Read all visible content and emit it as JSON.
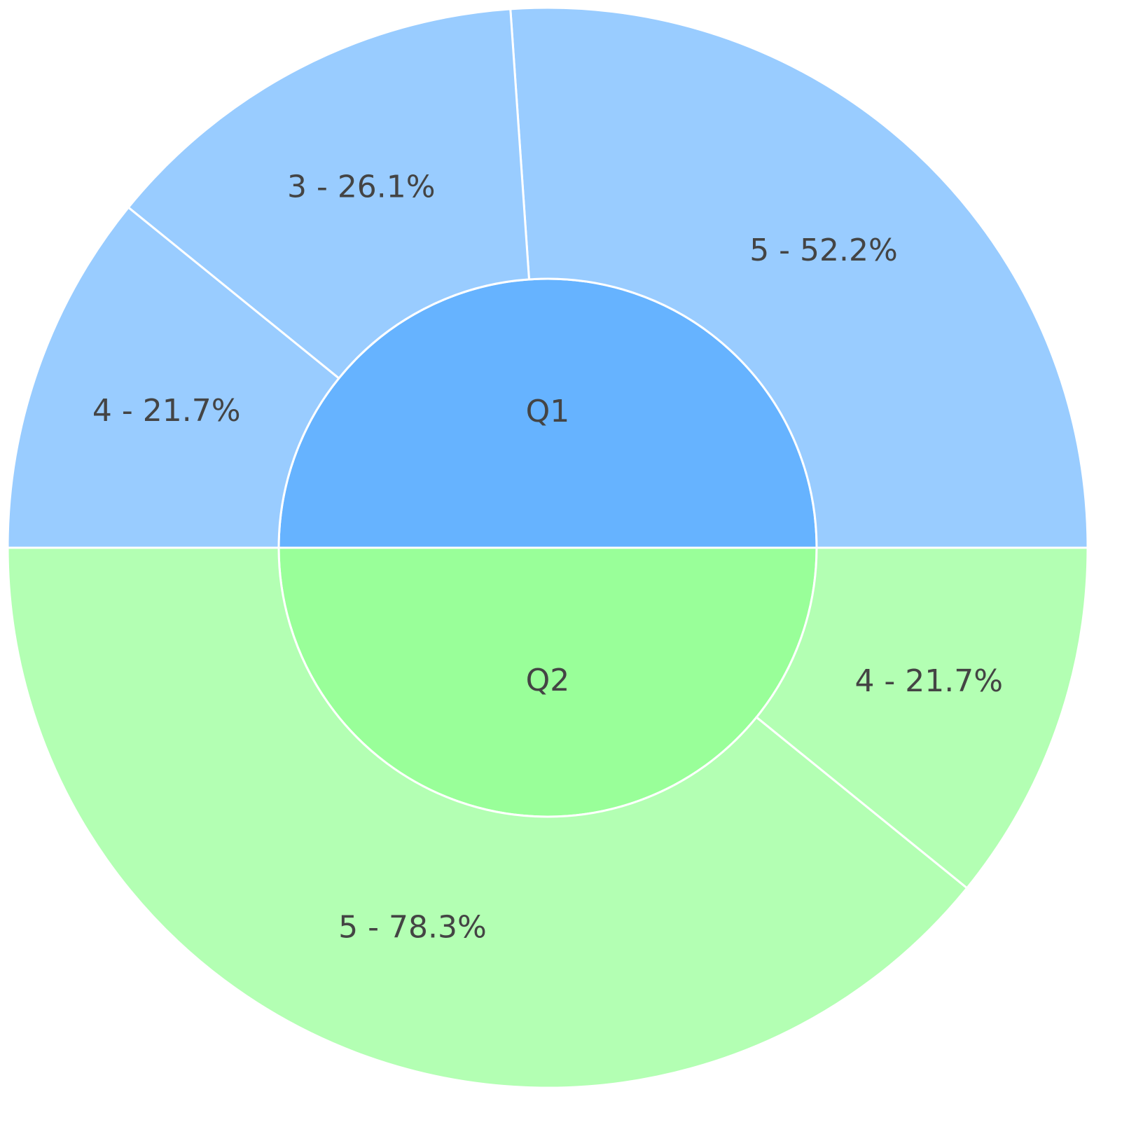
{
  "chart_data": {
    "type": "sunburst",
    "series": [
      {
        "name": "Q1",
        "color": "#66b3ff",
        "value": 50,
        "children": {
          "values": [
            52.2,
            26.1,
            21.7
          ],
          "value_labels": [
            "5 - 52.2%",
            "3 - 26.1%",
            "4 - 21.7%"
          ],
          "color": "#99ccff"
        }
      },
      {
        "name": "Q2",
        "color": "#99ff99",
        "value": 50,
        "children": {
          "values": [
            78.3,
            21.7
          ],
          "value_labels": [
            "5 - 78.3%",
            "4 - 21.7%"
          ],
          "color": "#b3ffb3"
        }
      }
    ]
  }
}
